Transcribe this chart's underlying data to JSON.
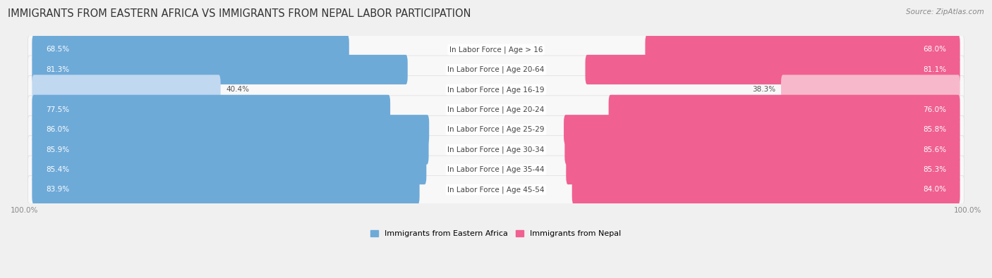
{
  "title": "IMMIGRANTS FROM EASTERN AFRICA VS IMMIGRANTS FROM NEPAL LABOR PARTICIPATION",
  "source": "Source: ZipAtlas.com",
  "categories": [
    "In Labor Force | Age > 16",
    "In Labor Force | Age 20-64",
    "In Labor Force | Age 16-19",
    "In Labor Force | Age 20-24",
    "In Labor Force | Age 25-29",
    "In Labor Force | Age 30-34",
    "In Labor Force | Age 35-44",
    "In Labor Force | Age 45-54"
  ],
  "eastern_africa": [
    68.5,
    81.3,
    40.4,
    77.5,
    86.0,
    85.9,
    85.4,
    83.9
  ],
  "nepal": [
    68.0,
    81.1,
    38.3,
    76.0,
    85.8,
    85.6,
    85.3,
    84.0
  ],
  "africa_color": "#6eaad8",
  "nepal_color": "#f06090",
  "africa_color_light": "#c0d8f0",
  "nepal_color_light": "#f8b8cc",
  "bar_height": 0.68,
  "bg_color": "#f0f0f0",
  "row_bg_even": "#f8f8f8",
  "row_bg_odd": "#ffffff",
  "title_fontsize": 10.5,
  "label_fontsize": 7.5,
  "value_fontsize": 7.5,
  "legend_fontsize": 8,
  "axis_label_fontsize": 7.5,
  "low_threshold": 50
}
